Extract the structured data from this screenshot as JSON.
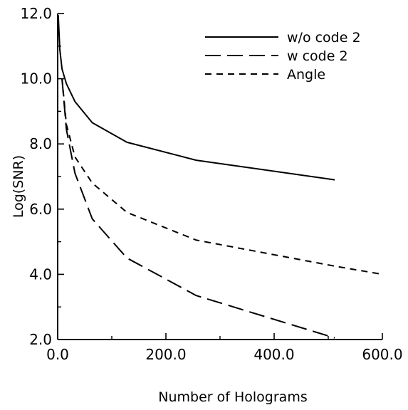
{
  "chart_data": {
    "type": "line",
    "xlabel": "Number of Holograms",
    "ylabel": "Log(SNR)",
    "xlim": [
      0,
      600
    ],
    "ylim": [
      2,
      12
    ],
    "x_ticks": [
      "0.0",
      "200.0",
      "400.0",
      "600.0"
    ],
    "y_ticks": [
      "2.0",
      "4.0",
      "6.0",
      "8.0",
      "10.0",
      "12.0"
    ],
    "grid": false,
    "legend_position": "top-right",
    "series": [
      {
        "name": "w/o code 2",
        "style": "solid",
        "x": [
          1,
          4,
          8,
          16,
          32,
          64,
          128,
          256,
          512
        ],
        "y": [
          11.95,
          10.9,
          10.3,
          9.85,
          9.3,
          8.65,
          8.05,
          7.5,
          6.9
        ]
      },
      {
        "name": "w code 2",
        "style": "long-dash",
        "x": [
          8,
          16,
          32,
          64,
          128,
          256,
          512
        ],
        "y": [
          10.0,
          8.45,
          7.1,
          5.7,
          4.5,
          3.35,
          2.05
        ]
      },
      {
        "name": "Angle",
        "style": "short-dash",
        "x": [
          8,
          16,
          32,
          64,
          128,
          256,
          512,
          600
        ],
        "y": [
          10.0,
          8.6,
          7.6,
          6.8,
          5.9,
          5.05,
          4.25,
          4.0
        ]
      }
    ]
  }
}
